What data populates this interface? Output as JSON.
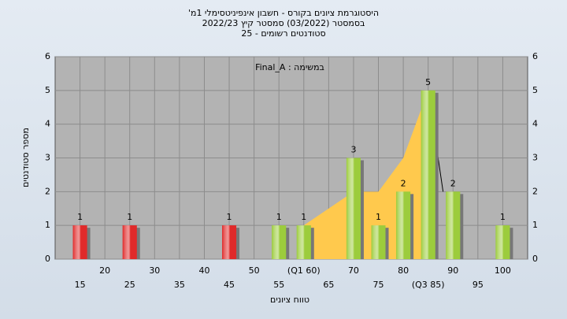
{
  "chart_data": {
    "type": "bar",
    "title": [
      "היסטוגרמת ציונים בקורס - חשבון אינפיניטסימלי 1מ'",
      "בסמסטר (03/2022) סמסטר קיץ 2022/23",
      "סטודנטים רשומים - 25"
    ],
    "annotation": "במשימה : Final_A",
    "xlabel": "טווח ציונים",
    "ylabel": "מספר סטודנטים",
    "x": [
      15,
      25,
      45,
      55,
      60,
      70,
      75,
      80,
      85,
      90,
      100
    ],
    "values": [
      1,
      1,
      1,
      1,
      1,
      3,
      1,
      2,
      5,
      2,
      1
    ],
    "colors": [
      "#e02a2a",
      "#e02a2a",
      "#e02a2a",
      "#9ccc3c",
      "#9ccc3c",
      "#9ccc3c",
      "#9ccc3c",
      "#9ccc3c",
      "#9ccc3c",
      "#9ccc3c",
      "#9ccc3c"
    ],
    "area": {
      "x": [
        60,
        70,
        75,
        80,
        85
      ],
      "values": [
        1,
        2,
        2,
        3,
        5
      ],
      "color": "#ffc94d"
    },
    "line": {
      "x": [
        85,
        88
      ],
      "values": [
        5,
        2
      ],
      "color": "#000000"
    },
    "xlim": [
      10,
      105
    ],
    "xticks": [
      15,
      20,
      25,
      30,
      35,
      40,
      45,
      50,
      55,
      {
        "value": 60,
        "label": "(Q1 60)"
      },
      65,
      70,
      75,
      80,
      {
        "value": 85,
        "label": "(Q3 85)"
      },
      90,
      95,
      100
    ],
    "ylim": [
      0,
      6
    ],
    "yticks": [
      0,
      1,
      2,
      3,
      4,
      5,
      6
    ],
    "grid": true
  }
}
